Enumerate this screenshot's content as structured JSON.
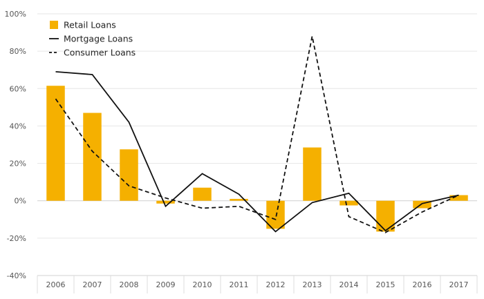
{
  "chart_data": {
    "type": "bar",
    "categories": [
      "2006",
      "2007",
      "2008",
      "2009",
      "2010",
      "2011",
      "2012",
      "2013",
      "2014",
      "2015",
      "2016",
      "2017"
    ],
    "series": [
      {
        "name": "Retail Loans",
        "kind": "bar",
        "color": "#F5B000",
        "values": [
          61.5,
          47,
          27.5,
          -1.5,
          7,
          1,
          -15,
          28.5,
          -2.5,
          -16.5,
          -4,
          3
        ]
      },
      {
        "name": "Mortgage Loans",
        "kind": "line",
        "style": "solid",
        "color": "#111111",
        "values": [
          69,
          67.5,
          42,
          -3,
          14.5,
          3.5,
          -16.5,
          -1,
          4,
          -16,
          -1.5,
          3
        ]
      },
      {
        "name": "Consumer Loans",
        "kind": "line",
        "style": "dashed",
        "color": "#111111",
        "values": [
          54.5,
          26.5,
          8,
          1.5,
          -4,
          -3,
          -10,
          88,
          -8.5,
          -17,
          -6,
          3
        ]
      }
    ],
    "y_ticks": [
      "100%",
      "80%",
      "60%",
      "40%",
      "20%",
      "0%",
      "-20%",
      "-40%"
    ],
    "ylim": [
      -40,
      100
    ],
    "grid": true,
    "legend_position": "top-left"
  }
}
